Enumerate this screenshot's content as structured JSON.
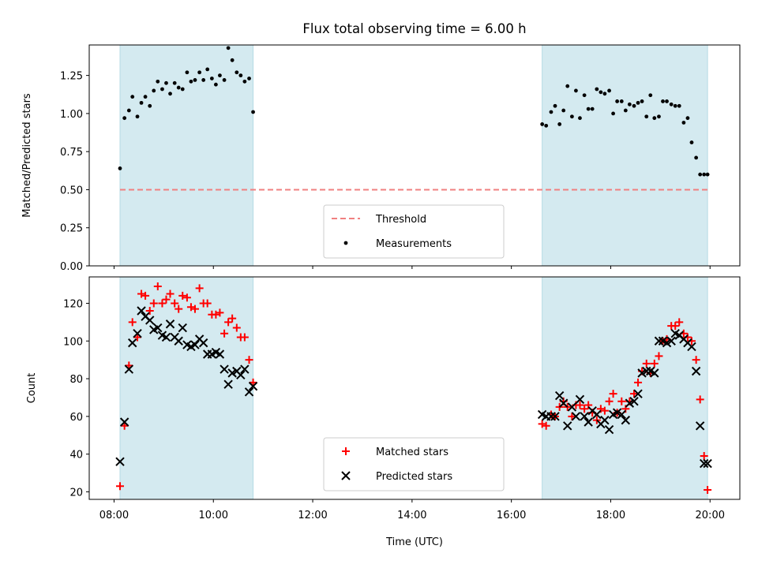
{
  "title": "Flux total observing time = 6.00 h",
  "xlabel": "Time (UTC)",
  "chart_data": [
    {
      "type": "scatter",
      "panel": "top",
      "ylabel": "Matched/Predicted stars",
      "ylim": [
        0.0,
        1.45
      ],
      "yticks": [
        "0.00",
        "0.25",
        "0.50",
        "0.75",
        "1.00",
        "1.25"
      ],
      "ytick_values": [
        0.0,
        0.25,
        0.5,
        0.75,
        1.0,
        1.25
      ],
      "xlim_hours": [
        7.5,
        20.6
      ],
      "shaded_intervals_hours": [
        [
          8.12,
          10.8
        ],
        [
          16.62,
          19.95
        ]
      ],
      "shade_color": "#d4eaf0",
      "threshold": {
        "name": "Threshold",
        "value": 0.5,
        "color": "#f08080",
        "x_range_hours": [
          8.12,
          19.95
        ]
      },
      "series": [
        {
          "name": "Measurements",
          "color": "#000000",
          "x_hours": [
            8.12,
            8.21,
            8.3,
            8.37,
            8.47,
            8.55,
            8.63,
            8.72,
            8.8,
            8.88,
            8.97,
            9.05,
            9.13,
            9.22,
            9.3,
            9.38,
            9.47,
            9.55,
            9.63,
            9.72,
            9.8,
            9.88,
            9.97,
            10.05,
            10.13,
            10.22,
            10.3,
            10.38,
            10.47,
            10.55,
            10.63,
            10.72,
            10.8,
            16.62,
            16.7,
            16.8,
            16.88,
            16.97,
            17.05,
            17.13,
            17.22,
            17.3,
            17.38,
            17.47,
            17.55,
            17.63,
            17.72,
            17.8,
            17.88,
            17.97,
            18.05,
            18.13,
            18.22,
            18.3,
            18.38,
            18.47,
            18.55,
            18.63,
            18.72,
            18.8,
            18.88,
            18.97,
            19.05,
            19.13,
            19.22,
            19.3,
            19.38,
            19.47,
            19.55,
            19.63,
            19.72,
            19.8,
            19.88,
            19.95
          ],
          "values": [
            0.64,
            0.97,
            1.02,
            1.11,
            0.98,
            1.07,
            1.11,
            1.05,
            1.15,
            1.21,
            1.16,
            1.2,
            1.13,
            1.2,
            1.17,
            1.16,
            1.27,
            1.21,
            1.22,
            1.27,
            1.22,
            1.29,
            1.23,
            1.19,
            1.25,
            1.22,
            1.43,
            1.35,
            1.27,
            1.25,
            1.21,
            1.23,
            1.01,
            0.93,
            0.92,
            1.01,
            1.05,
            0.93,
            1.02,
            1.18,
            0.98,
            1.15,
            0.97,
            1.12,
            1.03,
            1.03,
            1.16,
            1.14,
            1.13,
            1.15,
            1.0,
            1.08,
            1.08,
            1.02,
            1.06,
            1.05,
            1.07,
            1.08,
            0.98,
            1.12,
            0.97,
            0.98,
            1.08,
            1.08,
            1.06,
            1.05,
            1.05,
            0.94,
            0.97,
            0.81,
            0.71,
            0.6,
            0.6,
            0.6
          ]
        }
      ],
      "legend": {
        "placement": "lower center",
        "entries": [
          "Threshold",
          "Measurements"
        ]
      }
    },
    {
      "type": "scatter",
      "panel": "bottom",
      "ylabel": "Count",
      "ylim": [
        16,
        134
      ],
      "yticks": [
        "20",
        "40",
        "60",
        "80",
        "100",
        "120"
      ],
      "ytick_values": [
        20,
        40,
        60,
        80,
        100,
        120
      ],
      "xlim_hours": [
        7.5,
        20.6
      ],
      "xticks": [
        "08:00",
        "10:00",
        "12:00",
        "14:00",
        "16:00",
        "18:00",
        "20:00"
      ],
      "xtick_values_hours": [
        8,
        10,
        12,
        14,
        16,
        18,
        20
      ],
      "shaded_intervals_hours": [
        [
          8.12,
          10.8
        ],
        [
          16.62,
          19.95
        ]
      ],
      "series": [
        {
          "name": "Matched stars",
          "marker": "+",
          "color": "#ff0000",
          "x_hours": [
            8.12,
            8.21,
            8.3,
            8.37,
            8.47,
            8.55,
            8.63,
            8.72,
            8.8,
            8.88,
            8.97,
            9.05,
            9.13,
            9.22,
            9.3,
            9.38,
            9.47,
            9.55,
            9.63,
            9.72,
            9.8,
            9.88,
            9.97,
            10.05,
            10.13,
            10.22,
            10.3,
            10.38,
            10.47,
            10.55,
            10.63,
            10.72,
            10.8,
            16.62,
            16.7,
            16.8,
            16.88,
            16.97,
            17.05,
            17.13,
            17.22,
            17.3,
            17.38,
            17.47,
            17.55,
            17.63,
            17.72,
            17.8,
            17.88,
            17.97,
            18.05,
            18.13,
            18.22,
            18.3,
            18.38,
            18.47,
            18.55,
            18.63,
            18.72,
            18.8,
            18.88,
            18.97,
            19.05,
            19.13,
            19.22,
            19.3,
            19.38,
            19.47,
            19.55,
            19.63,
            19.72,
            19.8,
            19.88,
            19.95
          ],
          "values": [
            23,
            55,
            87,
            110,
            102,
            125,
            124,
            116,
            120,
            129,
            120,
            122,
            125,
            120,
            117,
            124,
            123,
            118,
            117,
            128,
            120,
            120,
            114,
            114,
            115,
            104,
            110,
            112,
            107,
            102,
            102,
            90,
            78,
            56,
            55,
            61,
            60,
            65,
            68,
            65,
            60,
            66,
            66,
            64,
            66,
            62,
            58,
            64,
            63,
            68,
            72,
            62,
            68,
            64,
            68,
            72,
            78,
            84,
            88,
            83,
            88,
            92,
            100,
            101,
            108,
            108,
            110,
            104,
            102,
            100,
            90,
            69,
            39,
            21
          ]
        },
        {
          "name": "Predicted stars",
          "marker": "x",
          "color": "#000000",
          "x_hours": [
            8.12,
            8.21,
            8.3,
            8.37,
            8.47,
            8.55,
            8.63,
            8.72,
            8.8,
            8.88,
            8.97,
            9.05,
            9.13,
            9.22,
            9.3,
            9.38,
            9.47,
            9.55,
            9.63,
            9.72,
            9.8,
            9.88,
            9.97,
            10.05,
            10.13,
            10.22,
            10.3,
            10.38,
            10.47,
            10.55,
            10.63,
            10.72,
            10.8,
            16.62,
            16.7,
            16.8,
            16.88,
            16.97,
            17.05,
            17.13,
            17.22,
            17.3,
            17.38,
            17.47,
            17.55,
            17.63,
            17.72,
            17.8,
            17.88,
            17.97,
            18.05,
            18.13,
            18.22,
            18.3,
            18.38,
            18.47,
            18.55,
            18.63,
            18.72,
            18.8,
            18.88,
            18.97,
            19.05,
            19.13,
            19.22,
            19.3,
            19.38,
            19.47,
            19.55,
            19.63,
            19.72,
            19.8,
            19.88,
            19.95
          ],
          "values": [
            36,
            57,
            85,
            99,
            104,
            116,
            113,
            111,
            106,
            107,
            103,
            102,
            109,
            102,
            100,
            107,
            98,
            97,
            98,
            101,
            99,
            93,
            93,
            94,
            93,
            85,
            77,
            83,
            84,
            82,
            85,
            73,
            76,
            61,
            60,
            60,
            60,
            71,
            67,
            55,
            65,
            60,
            69,
            60,
            57,
            63,
            61,
            56,
            58,
            53,
            61,
            62,
            61,
            58,
            67,
            68,
            72,
            83,
            84,
            84,
            83,
            100,
            100,
            99,
            100,
            104,
            103,
            101,
            99,
            97,
            84,
            55,
            35,
            35
          ]
        }
      ],
      "legend": {
        "placement": "lower center",
        "entries": [
          "Matched stars",
          "Predicted stars"
        ]
      }
    }
  ]
}
